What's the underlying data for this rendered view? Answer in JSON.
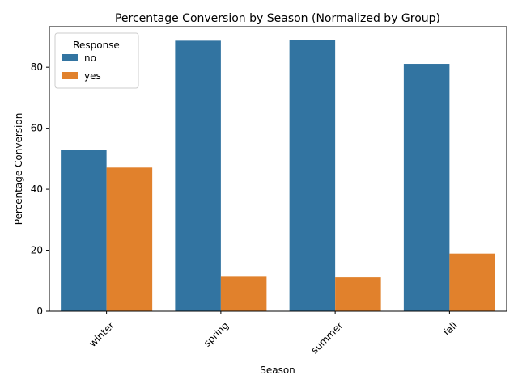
{
  "chart_data": {
    "type": "bar",
    "title": "Percentage Conversion by Season (Normalized by Group)",
    "xlabel": "Season",
    "ylabel": "Percentage Conversion",
    "categories": [
      "winter",
      "spring",
      "summer",
      "fall"
    ],
    "series": [
      {
        "name": "no",
        "color": "#3274a1",
        "values": [
          52.9,
          88.7,
          88.9,
          81.1
        ]
      },
      {
        "name": "yes",
        "color": "#e1812c",
        "values": [
          47.1,
          11.3,
          11.1,
          18.9
        ]
      }
    ],
    "ylim": [
      0,
      93.3
    ],
    "yticks": [
      0,
      20,
      40,
      60,
      80
    ],
    "ytick_labels": [
      "0",
      "20",
      "40",
      "60",
      "80"
    ],
    "legend": {
      "title": "Response",
      "placement": "top-left"
    },
    "grid": false,
    "xtick_rotation": 45
  }
}
